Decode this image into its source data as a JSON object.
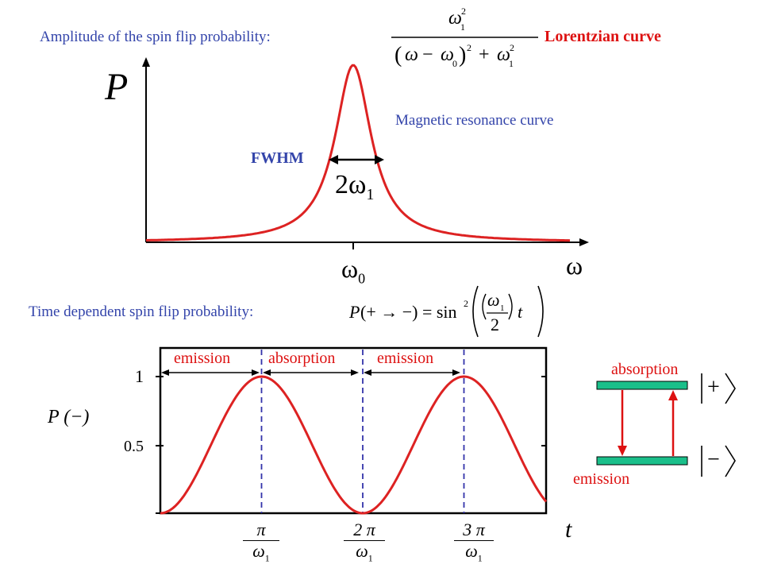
{
  "header": {
    "amplitude_label": "Amplitude of the spin flip probability:",
    "lorentz_label": "Lorentzian curve"
  },
  "resonance": {
    "y_label": "P",
    "x_label": "ω",
    "center_label": "ω",
    "center_sub": "0",
    "curve_label": "Magnetic resonance curve",
    "fwhm_label": "FWHM",
    "width_label_main": "2ω",
    "width_label_sub": "1",
    "color": "#dd2222"
  },
  "time_section": {
    "label": "Time dependent spin flip probability:",
    "y_label": "P (−)",
    "x_label": "t",
    "ytick_1": "1",
    "ytick_05": "0.5",
    "region_labels": [
      "emission",
      "absorption",
      "emission"
    ],
    "xtick_labels": [
      {
        "num": "π",
        "den": "ω",
        "den_sub": "1"
      },
      {
        "num": "2 π",
        "den": "ω",
        "den_sub": "1"
      },
      {
        "num": "3 π",
        "den": "ω",
        "den_sub": "1"
      }
    ]
  },
  "levels": {
    "absorption_label": "absorption",
    "emission_label": "emission",
    "upper_state": "|+⟩",
    "lower_state": "|−⟩",
    "level_color": "#1abf8a"
  },
  "chart_data": [
    {
      "type": "line",
      "title": "Magnetic resonance curve",
      "xlabel": "ω",
      "ylabel": "P",
      "shape": "Lorentzian",
      "center": "ω0",
      "width": "2ω1"
    },
    {
      "type": "line",
      "xlabel": "t",
      "ylabel": "P (−)",
      "ylim": [
        0,
        1
      ],
      "yticks": [
        0.5,
        1
      ],
      "x": [
        0,
        1,
        2,
        3,
        4
      ],
      "x_units": "π/ω1",
      "y": [
        0,
        1,
        0,
        1,
        0
      ],
      "function": "sin²(ω1 t / 2)"
    }
  ]
}
